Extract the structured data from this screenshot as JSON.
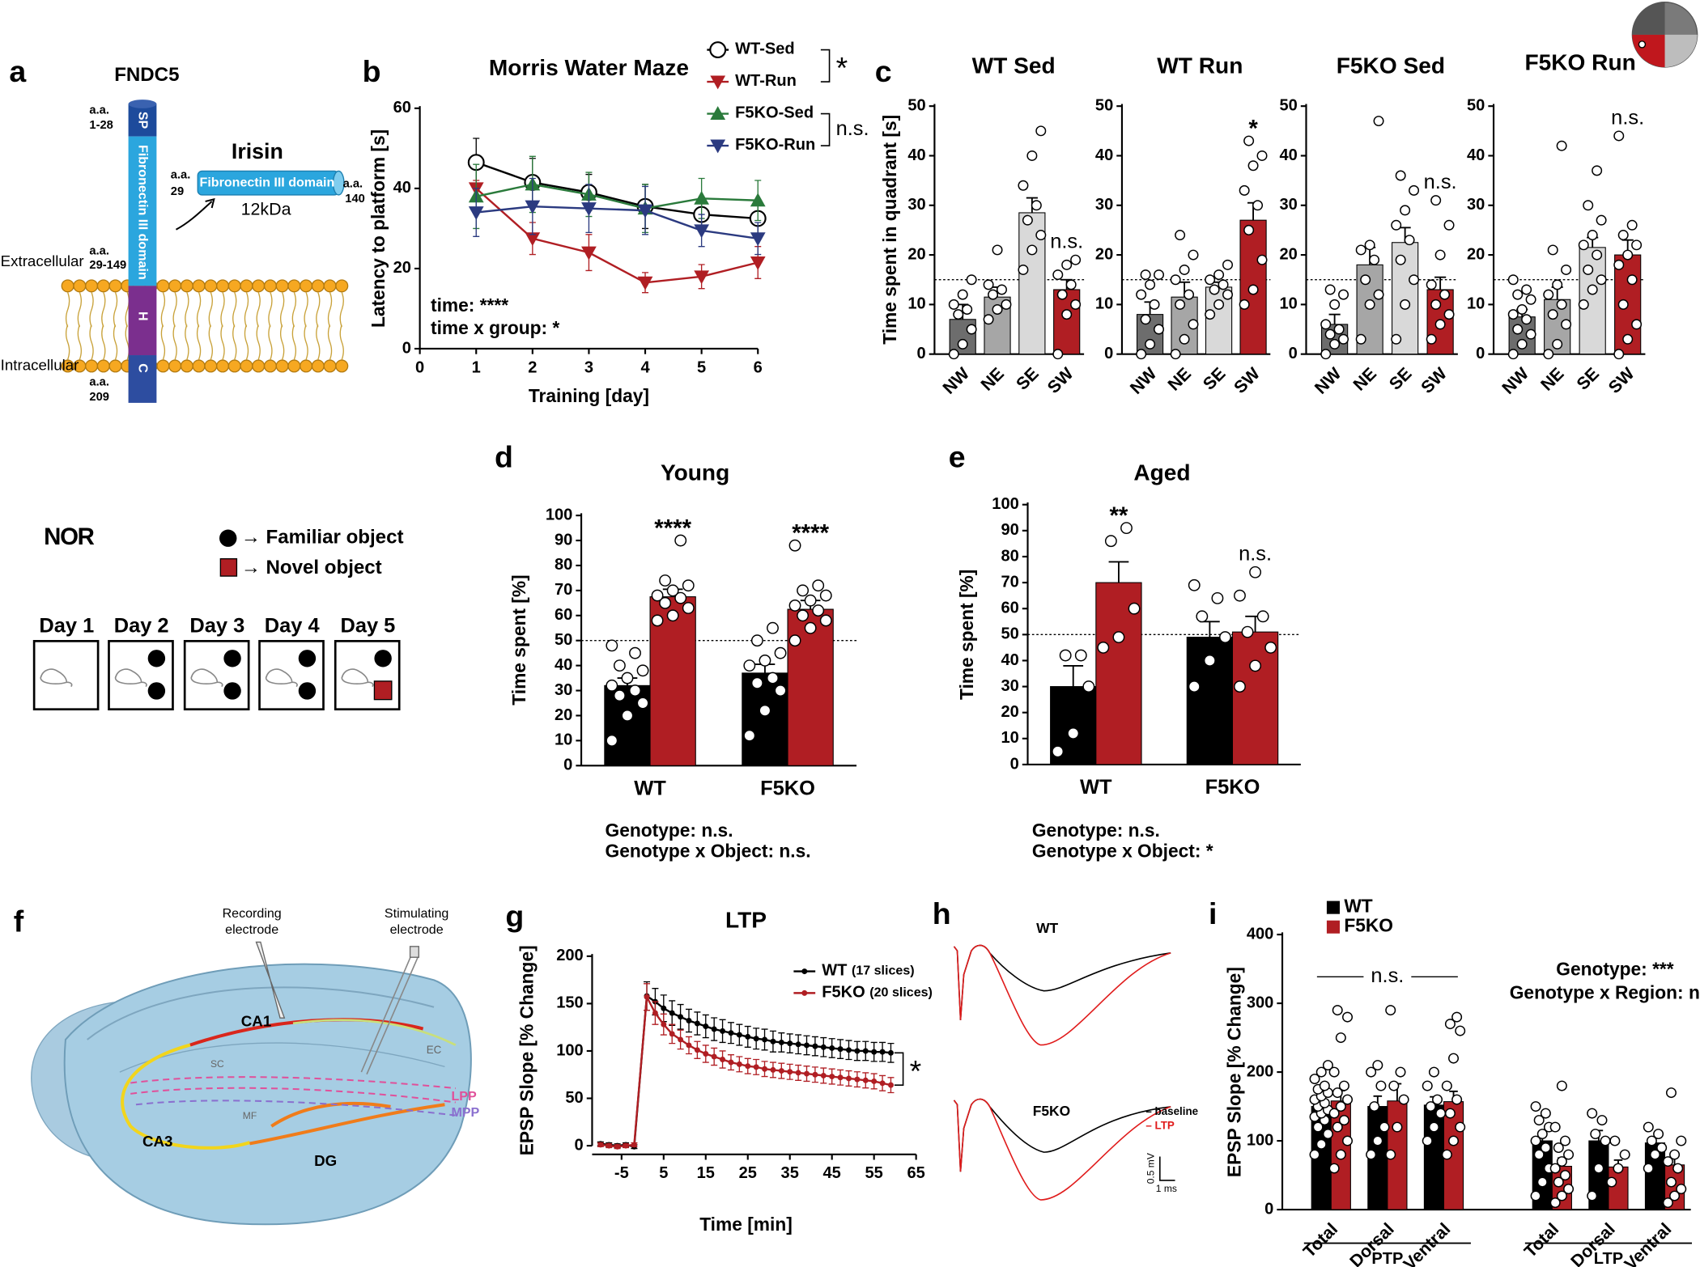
{
  "panel_labels": [
    "a",
    "b",
    "c",
    "d",
    "e",
    "f",
    "g",
    "h",
    "i"
  ],
  "fndc5": {
    "title": "FNDC5",
    "protein_name": "Irisin",
    "irisin_domain": "Fibronectin III domain",
    "irisin_size": "12kDa",
    "irisin_start": [
      "a.a.",
      "29"
    ],
    "irisin_end": [
      "a.a.",
      "140"
    ],
    "sp_range": [
      "a.a.",
      "1-28"
    ],
    "domain_range": [
      "a.a.",
      "29-149"
    ],
    "c_end": [
      "a.a.",
      "209"
    ],
    "segments": [
      "SP",
      "Fibronectin III domain",
      "H",
      "C"
    ],
    "extracellular": "Extracellular",
    "intracellular": "Intracellular"
  },
  "nor": {
    "title": "NOR",
    "familiar": "→ Familiar object",
    "novel": "→ Novel object",
    "days": [
      "Day 1",
      "Day 2",
      "Day 3",
      "Day 4",
      "Day 5"
    ]
  },
  "hippocampus": {
    "recording": [
      "Recording",
      "electrode"
    ],
    "stimulating": [
      "Stimulating",
      "electrode"
    ],
    "regions": [
      "CA1",
      "CA3",
      "DG",
      "SC",
      "MF",
      "EC",
      "LPP",
      "MPP"
    ]
  },
  "traces": {
    "wt": "WT",
    "f5ko": "F5KO",
    "baseline": "– baseline",
    "ltp": "– LTP",
    "scale_v": "0.5 mV",
    "scale_t": "1 ms"
  },
  "chart_data": [
    {
      "type": "line",
      "title": "Morris Water Maze",
      "xlabel": "Training [day]",
      "ylabel": "Latency to platform [s]",
      "x": [
        1,
        2,
        3,
        4,
        5,
        6
      ],
      "xlim": [
        0,
        6
      ],
      "xticks": [
        0,
        1,
        2,
        3,
        4,
        5,
        6
      ],
      "ylim": [
        0,
        60
      ],
      "yticks": [
        0,
        20,
        40,
        60
      ],
      "series": [
        {
          "name": "WT-Sed",
          "color": "#000000",
          "marker": "circle-open",
          "values": [
            46.5,
            41.5,
            39,
            35.5,
            33.5,
            32.5
          ],
          "errors": [
            6,
            6,
            4.5,
            5.5,
            4,
            4
          ]
        },
        {
          "name": "WT-Run",
          "color": "#b01e23",
          "marker": "triangle-down",
          "values": [
            40,
            27.5,
            24,
            16.5,
            18,
            21.5
          ],
          "errors": [
            2,
            4,
            4.5,
            2.5,
            3,
            4
          ]
        },
        {
          "name": "F5KO-Sed",
          "color": "#2a7a3b",
          "marker": "triangle-up",
          "values": [
            38,
            41,
            38.5,
            35,
            37.5,
            37
          ],
          "errors": [
            8,
            7,
            5.5,
            6,
            5,
            5
          ]
        },
        {
          "name": "F5KO-Run",
          "color": "#2b3a80",
          "marker": "triangle-down",
          "values": [
            34,
            35.5,
            35,
            34.5,
            29.5,
            27.5
          ],
          "errors": [
            6,
            7,
            6,
            6,
            4,
            4
          ]
        }
      ],
      "comparisons": [
        {
          "series": [
            0,
            1
          ],
          "text": "*"
        },
        {
          "series": [
            2,
            3
          ],
          "text": "n.s."
        }
      ],
      "notes": [
        "time: ****",
        "time x group: *"
      ]
    },
    {
      "type": "bar",
      "title": "WT Sed",
      "ylabel": "Time spent in quadrant [s]",
      "categories": [
        "NW",
        "NE",
        "SE",
        "SW"
      ],
      "values": [
        7,
        11.5,
        28.5,
        13
      ],
      "errors": [
        3,
        2,
        3,
        2
      ],
      "colors": [
        "#6d6d6d",
        "#a6a6a6",
        "#d9d9d9",
        "#b01e23"
      ],
      "points": [
        [
          0,
          2,
          5,
          8,
          9,
          10,
          12,
          15
        ],
        [
          7,
          9,
          10,
          12,
          13,
          14,
          21
        ],
        [
          17,
          21,
          24,
          27,
          30,
          34,
          40,
          45
        ],
        [
          0,
          8,
          10,
          12,
          14,
          16,
          18,
          19
        ]
      ],
      "value_annotations": [
        null,
        null,
        null,
        "n.s."
      ],
      "ylim": [
        0,
        50
      ],
      "yticks": [
        0,
        10,
        20,
        30,
        40,
        50
      ],
      "ref_line": 15
    },
    {
      "type": "bar",
      "title": "WT Run",
      "categories": [
        "NW",
        "NE",
        "SE",
        "SW"
      ],
      "values": [
        8,
        11.5,
        13.5,
        27
      ],
      "errors": [
        2.5,
        3,
        1,
        3.5
      ],
      "colors": [
        "#6d6d6d",
        "#a6a6a6",
        "#d9d9d9",
        "#b01e23"
      ],
      "points": [
        [
          0,
          2,
          5,
          7,
          10,
          12,
          14,
          16,
          16
        ],
        [
          0,
          3,
          6,
          10,
          12,
          15,
          17,
          20,
          24
        ],
        [
          8,
          10,
          12,
          13,
          14,
          15,
          16,
          18
        ],
        [
          10,
          13,
          19,
          25,
          30,
          33,
          38,
          40,
          43
        ]
      ],
      "value_annotations": [
        null,
        null,
        null,
        "*"
      ],
      "ylim": [
        0,
        50
      ],
      "yticks": [
        0,
        10,
        20,
        30,
        40,
        50
      ],
      "ref_line": 15
    },
    {
      "type": "bar",
      "title": "F5KO Sed",
      "categories": [
        "NW",
        "NE",
        "SE",
        "SW"
      ],
      "values": [
        6,
        18,
        22.5,
        13
      ],
      "errors": [
        2,
        3.5,
        3,
        2.5
      ],
      "colors": [
        "#6d6d6d",
        "#a6a6a6",
        "#d9d9d9",
        "#b01e23"
      ],
      "points": [
        [
          0,
          2,
          3,
          4,
          5,
          6,
          10,
          12,
          13
        ],
        [
          3,
          10,
          12,
          15,
          19,
          21,
          22,
          47
        ],
        [
          3,
          10,
          15,
          19,
          23,
          26,
          29,
          33,
          36
        ],
        [
          3,
          6,
          8,
          10,
          12,
          14,
          20,
          26,
          31
        ]
      ],
      "value_annotations": [
        null,
        null,
        null,
        "n.s."
      ],
      "ylim": [
        0,
        50
      ],
      "yticks": [
        0,
        10,
        20,
        30,
        40,
        50
      ],
      "ref_line": 15
    },
    {
      "type": "bar",
      "title": "F5KO Run",
      "categories": [
        "NW",
        "NE",
        "SE",
        "SW"
      ],
      "values": [
        7.5,
        11,
        21.5,
        20
      ],
      "errors": [
        1.5,
        2.5,
        2,
        3
      ],
      "colors": [
        "#6d6d6d",
        "#a6a6a6",
        "#d9d9d9",
        "#b01e23"
      ],
      "points": [
        [
          0,
          2,
          4,
          5,
          7,
          8,
          9,
          11,
          12,
          13,
          15
        ],
        [
          0,
          2,
          6,
          8,
          10,
          12,
          14,
          17,
          21,
          42
        ],
        [
          10,
          13,
          15,
          17,
          20,
          22,
          24,
          27,
          30,
          37
        ],
        [
          0,
          3,
          6,
          10,
          15,
          18,
          20,
          22,
          24,
          26,
          44
        ]
      ],
      "value_annotations": [
        null,
        null,
        null,
        "n.s."
      ],
      "ylim": [
        0,
        50
      ],
      "yticks": [
        0,
        10,
        20,
        30,
        40,
        50
      ],
      "ref_line": 15
    },
    {
      "type": "bar",
      "title": "Young",
      "ylabel": "Time spent [%]",
      "categories": [
        "WT",
        "F5KO"
      ],
      "series": [
        {
          "color": "#000000",
          "values": [
            32,
            37
          ],
          "errors": [
            3,
            3.5
          ],
          "points": [
            [
              10,
              20,
              25,
              28,
              30,
              32,
              35,
              38,
              40,
              45,
              48
            ],
            [
              12,
              22,
              30,
              33,
              35,
              40,
              42,
              45,
              50,
              55
            ]
          ]
        },
        {
          "color": "#b01e23",
          "values": [
            67.5,
            62.5
          ],
          "errors": [
            3,
            3.5
          ],
          "points": [
            [
              58,
              60,
              63,
              65,
              67,
              68,
              70,
              72,
              74,
              90
            ],
            [
              50,
              55,
              58,
              60,
              62,
              64,
              66,
              68,
              70,
              72,
              88
            ]
          ],
          "value_annotations": [
            "****",
            "****"
          ]
        }
      ],
      "ylim": [
        0,
        100
      ],
      "yticks": [
        0,
        10,
        20,
        30,
        40,
        50,
        60,
        70,
        80,
        90,
        100
      ],
      "ref_line": 50,
      "notes": [
        "Genotype: n.s.",
        "Genotype x Object: n.s."
      ]
    },
    {
      "type": "bar",
      "title": "Aged",
      "ylabel": "Time spent [%]",
      "categories": [
        "WT",
        "F5KO"
      ],
      "series": [
        {
          "color": "#000000",
          "values": [
            30,
            49
          ],
          "errors": [
            8,
            6
          ],
          "points": [
            [
              5,
              12,
              30,
              42,
              42
            ],
            [
              30,
              40,
              49,
              57,
              64,
              69
            ]
          ]
        },
        {
          "color": "#b01e23",
          "values": [
            70,
            51
          ],
          "errors": [
            8,
            6
          ],
          "points": [
            [
              45,
              49,
              60,
              86,
              91
            ],
            [
              30,
              38,
              45,
              51,
              57,
              65,
              74
            ]
          ],
          "value_annotations": [
            "**",
            "n.s."
          ]
        }
      ],
      "ylim": [
        0,
        100
      ],
      "yticks": [
        0,
        10,
        20,
        30,
        40,
        50,
        60,
        70,
        80,
        90,
        100
      ],
      "ref_line": 50,
      "notes": [
        "Genotype: n.s.",
        "Genotype x Object: *"
      ]
    },
    {
      "type": "line",
      "title": "LTP",
      "xlabel": "Time [min]",
      "ylabel": "EPSP Slope [% Change]",
      "x": [
        -10,
        -8,
        -6,
        -4,
        -2,
        1,
        3,
        5,
        7,
        9,
        11,
        13,
        15,
        17,
        19,
        21,
        23,
        25,
        27,
        29,
        31,
        33,
        35,
        37,
        39,
        41,
        43,
        45,
        47,
        49,
        51,
        53,
        55,
        57,
        59
      ],
      "xlim": [
        -12,
        65
      ],
      "xticks": [
        -5,
        5,
        15,
        25,
        35,
        45,
        55,
        65
      ],
      "ylim": [
        0,
        200
      ],
      "yticks": [
        0,
        50,
        100,
        150,
        200
      ],
      "series": [
        {
          "name": "WT",
          "note": "(17 slices)",
          "color": "#000000",
          "marker": "circle",
          "values": [
            2,
            1,
            0,
            1,
            -1,
            158,
            152,
            145,
            140,
            136,
            132,
            129,
            126,
            123,
            121,
            119,
            117,
            115,
            113,
            112,
            110,
            109,
            108,
            107,
            106,
            105,
            104,
            103,
            102,
            101,
            100,
            100,
            99,
            99,
            98
          ],
          "errors": [
            2,
            2,
            2,
            2,
            2,
            15,
            14,
            14,
            13,
            13,
            12,
            12,
            12,
            12,
            12,
            11,
            11,
            11,
            11,
            11,
            11,
            10,
            10,
            10,
            10,
            10,
            10,
            10,
            10,
            10,
            10,
            10,
            10,
            10,
            10
          ]
        },
        {
          "name": "F5KO",
          "note": "(20 slices)",
          "color": "#b01e23",
          "marker": "circle",
          "values": [
            1,
            0,
            -1,
            0,
            1,
            157,
            140,
            128,
            118,
            112,
            106,
            101,
            97,
            94,
            91,
            88,
            86,
            84,
            83,
            81,
            80,
            79,
            78,
            77,
            76,
            75,
            74,
            73,
            72,
            71,
            70,
            69,
            68,
            66,
            64
          ],
          "errors": [
            2,
            2,
            2,
            2,
            2,
            14,
            12,
            11,
            10,
            10,
            9,
            9,
            9,
            9,
            9,
            8,
            8,
            8,
            8,
            8,
            8,
            8,
            8,
            8,
            8,
            8,
            8,
            8,
            8,
            8,
            8,
            8,
            8,
            8,
            8
          ]
        }
      ],
      "comparisons": [
        {
          "series": [
            0,
            1
          ],
          "text": "*"
        }
      ]
    },
    {
      "type": "bar",
      "ylabel": "EPSP Slope [% Change]",
      "category_groups": [
        {
          "name": "PTP",
          "annotation": "n.s.",
          "categories": [
            "Total",
            "Dorsal",
            "Ventral"
          ]
        },
        {
          "name": "LTP",
          "categories": [
            "Total",
            "Dorsal",
            "Ventral"
          ]
        }
      ],
      "series": [
        {
          "name": "WT",
          "color": "#000000",
          "values": [
            150,
            150,
            152,
            100,
            100,
            97
          ],
          "errors": [
            12,
            15,
            12,
            10,
            15,
            7
          ],
          "points": [
            [
              80,
              95,
              110,
              120,
              130,
              135,
              140,
              145,
              150,
              155,
              160,
              165,
              170,
              175,
              180,
              190,
              200,
              210
            ],
            [
              80,
              100,
              120,
              150,
              180,
              200,
              210
            ],
            [
              100,
              120,
              140,
              150,
              160,
              180,
              200
            ],
            [
              20,
              40,
              60,
              80,
              90,
              100,
              110,
              120,
              130,
              140,
              150
            ],
            [
              20,
              60,
              100,
              110,
              130,
              140
            ],
            [
              60,
              80,
              90,
              100,
              110,
              120
            ]
          ]
        },
        {
          "name": "F5KO",
          "color": "#b01e23",
          "values": [
            158,
            158,
            157,
            63,
            62,
            65
          ],
          "errors": [
            15,
            25,
            15,
            12,
            10,
            15
          ],
          "points": [
            [
              60,
              80,
              100,
              120,
              130,
              140,
              150,
              160,
              170,
              180,
              200,
              250,
              280,
              290
            ],
            [
              80,
              120,
              160,
              180,
              200,
              290
            ],
            [
              80,
              100,
              120,
              140,
              160,
              180,
              220,
              260,
              270,
              280
            ],
            [
              10,
              20,
              30,
              40,
              50,
              60,
              70,
              80,
              90,
              100,
              120,
              180
            ],
            [
              40,
              60,
              80,
              100
            ],
            [
              10,
              20,
              30,
              40,
              60,
              70,
              80,
              100,
              170
            ]
          ]
        }
      ],
      "ylim": [
        0,
        400
      ],
      "yticks": [
        0,
        100,
        200,
        300,
        400
      ],
      "notes": [
        "Genotype: ***",
        "Genotype x Region: n.s."
      ]
    }
  ]
}
